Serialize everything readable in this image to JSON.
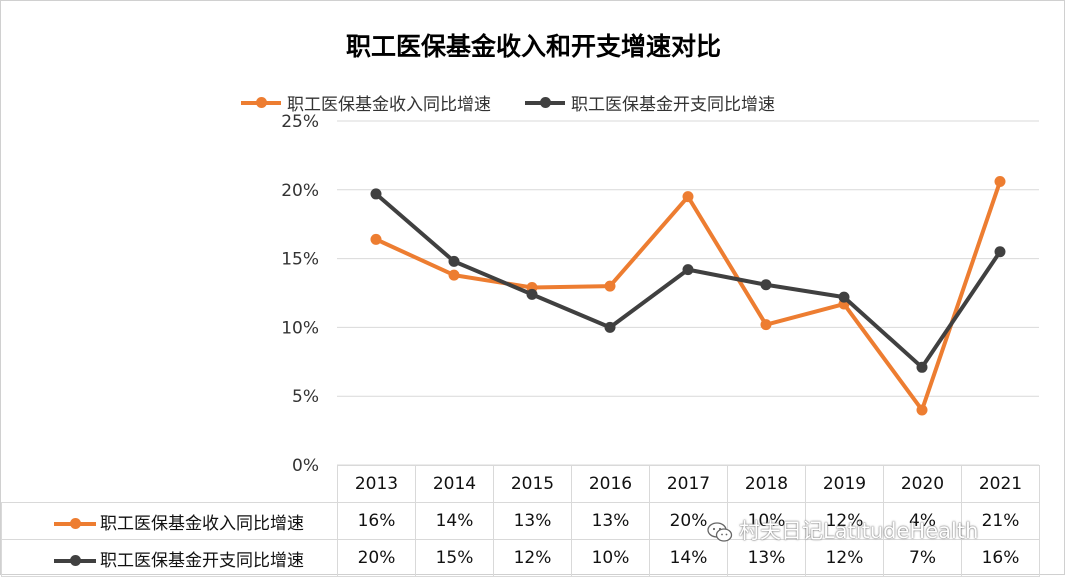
{
  "chart_data": {
    "type": "line",
    "title": "职工医保基金收入和开支增速对比",
    "categories": [
      "2013",
      "2014",
      "2015",
      "2016",
      "2017",
      "2018",
      "2019",
      "2020",
      "2021"
    ],
    "ylim": [
      0,
      25
    ],
    "yticks": [
      "0%",
      "5%",
      "10%",
      "15%",
      "20%",
      "25%"
    ],
    "grid": true,
    "legend_position": "top",
    "series": [
      {
        "name": "职工医保基金收入同比增速",
        "color": "#ed7d31",
        "values": [
          16.4,
          13.8,
          12.9,
          13.0,
          19.5,
          10.2,
          11.7,
          4.0,
          20.6
        ],
        "table_values": [
          "16%",
          "14%",
          "13%",
          "13%",
          "20%",
          "10%",
          "12%",
          "4%",
          "21%"
        ]
      },
      {
        "name": "职工医保基金开支同比增速",
        "color": "#404040",
        "values": [
          19.7,
          14.8,
          12.4,
          10.0,
          14.2,
          13.1,
          12.2,
          7.1,
          15.5
        ],
        "table_values": [
          "20%",
          "15%",
          "12%",
          "10%",
          "14%",
          "13%",
          "12%",
          "7%",
          "16%"
        ]
      }
    ]
  },
  "watermark": {
    "text": "村夫日记LatitudeHealth",
    "icon": "wechat-icon"
  }
}
